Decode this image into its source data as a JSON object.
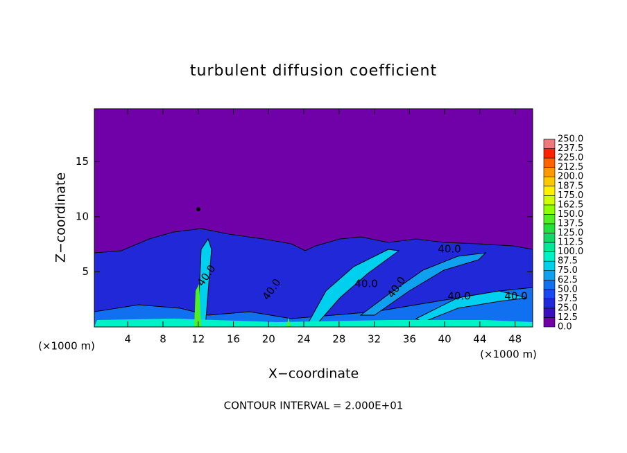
{
  "chart_data": {
    "type": "contour",
    "title": "turbulent diffusion coefficient",
    "x_label": "X−coordinate",
    "y_label": "Z−coordinate",
    "x_unit": "(×1000 m)",
    "y_unit": "(×1000 m)",
    "footer": "CONTOUR INTERVAL = 2.000E+01",
    "contour_labels": [
      "40.0",
      "40.0",
      "40.0",
      "40.0",
      "40.0",
      "40.0",
      "40.0"
    ],
    "xlim": [
      0.2,
      50
    ],
    "ylim": [
      0,
      19.8
    ],
    "xticks": [
      4,
      8,
      12,
      16,
      20,
      24,
      28,
      32,
      36,
      40,
      44,
      48
    ],
    "yticks": [
      5,
      10,
      15
    ],
    "levels": [
      {
        "value": 0,
        "label": "0.0"
      },
      12.5,
      {
        "value": 25,
        "label": "25.0"
      },
      37.5,
      {
        "value": 50,
        "label": "50.0"
      },
      62.5,
      {
        "value": 75,
        "label": "75.0"
      },
      87.5,
      {
        "value": 100,
        "label": "100.0"
      },
      112.5,
      {
        "value": 125,
        "label": "125.0"
      },
      137.5,
      {
        "value": 150,
        "label": "150.0"
      },
      162.5,
      {
        "value": 175,
        "label": "175.0"
      },
      187.5,
      {
        "value": 200,
        "label": "200.0"
      },
      212.5,
      {
        "value": 225,
        "label": "225.0"
      },
      237.5,
      {
        "value": 250,
        "label": "250.0"
      }
    ],
    "colors": [
      "#7000a8",
      "#3810c0",
      "#2028d8",
      "#1848f0",
      "#1070f0",
      "#10a0f0",
      "#00d0f0",
      "#00f0c8",
      "#00e898",
      "#10d868",
      "#20e040",
      "#50f020",
      "#90ff00",
      "#d0ff00",
      "#fff000",
      "#ffc800",
      "#ff9800",
      "#ff6000",
      "#ff2000",
      "#f07878"
    ]
  }
}
